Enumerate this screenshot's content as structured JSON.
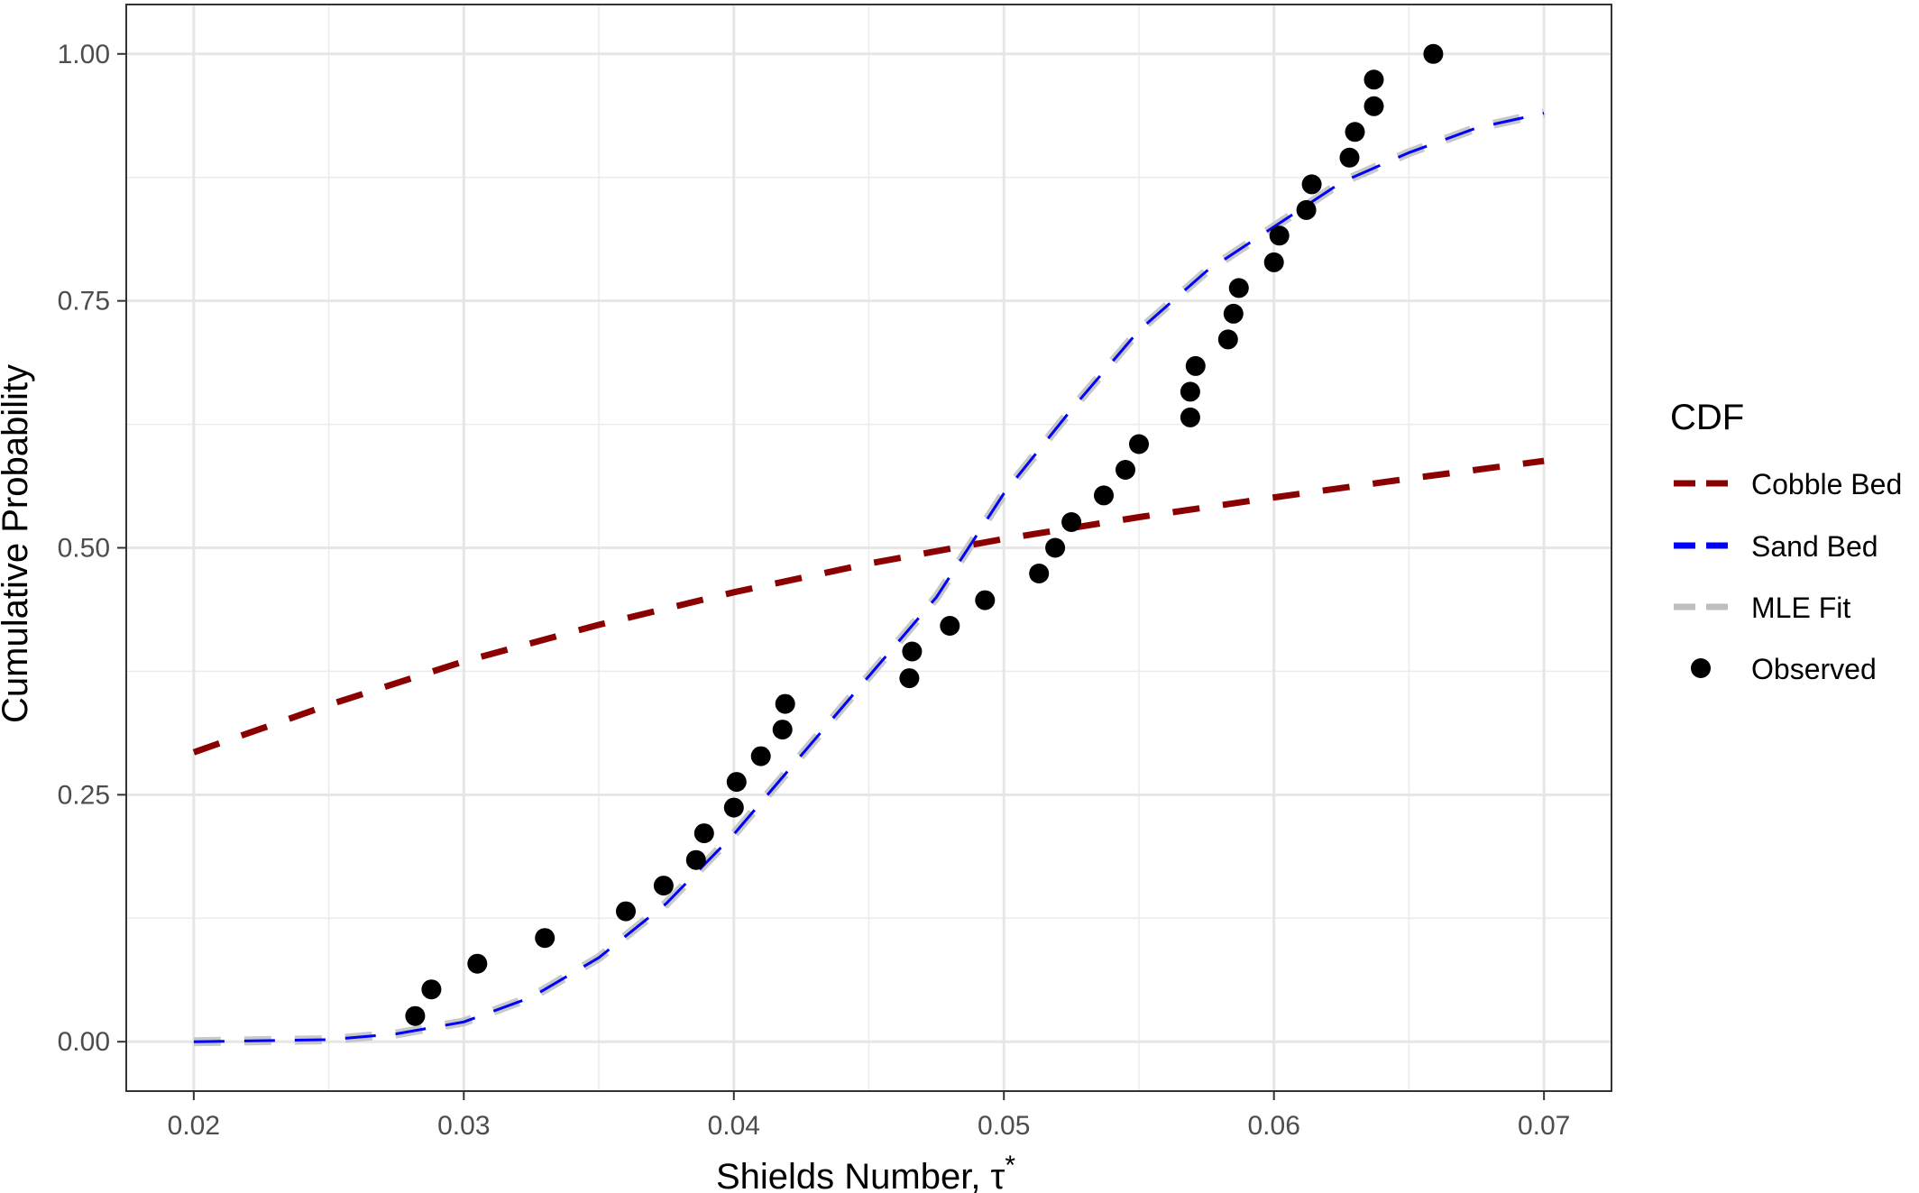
{
  "chart_data": {
    "type": "line",
    "xlabel": "Shields Number, τ",
    "xlabel_superscript": "*",
    "ylabel": "Cumulative Probability",
    "xlim": [
      0.0175,
      0.0725
    ],
    "ylim": [
      -0.05,
      1.05
    ],
    "x_ticks": [
      0.02,
      0.03,
      0.04,
      0.05,
      0.06,
      0.07
    ],
    "x_tick_labels": [
      "0.02",
      "0.03",
      "0.04",
      "0.05",
      "0.06",
      "0.07"
    ],
    "y_ticks": [
      0,
      0.25,
      0.5,
      0.75,
      1.0
    ],
    "y_tick_labels": [
      "0.00",
      "0.25",
      "0.50",
      "0.75",
      "1.00"
    ],
    "grid": true,
    "legend": {
      "title": "CDF",
      "placement": "right",
      "entries": [
        {
          "label": "Cobble Bed",
          "type": "dashed-line",
          "color": "#8b0000"
        },
        {
          "label": "Sand Bed",
          "type": "dashed-line",
          "color": "#0000ff"
        },
        {
          "label": "MLE Fit",
          "type": "dashed-line",
          "color": "#bebebe"
        },
        {
          "label": "Observed",
          "type": "point",
          "color": "#000000"
        }
      ]
    },
    "series": [
      {
        "name": "Cobble Bed",
        "type": "line",
        "style": "dashed",
        "color": "#8b0000",
        "x": [
          0.02,
          0.025,
          0.03,
          0.035,
          0.04,
          0.045,
          0.05,
          0.055,
          0.06,
          0.065,
          0.07
        ],
        "y": [
          0.293,
          0.341,
          0.385,
          0.422,
          0.455,
          0.484,
          0.509,
          0.531,
          0.551,
          0.57,
          0.588
        ]
      },
      {
        "name": "Sand Bed",
        "type": "line",
        "style": "dashed",
        "color": "#0000ff",
        "x": [
          0.02,
          0.025,
          0.0275,
          0.03,
          0.0325,
          0.035,
          0.0375,
          0.04,
          0.0425,
          0.045,
          0.0475,
          0.05,
          0.0525,
          0.055,
          0.0575,
          0.06,
          0.0625,
          0.065,
          0.0675,
          0.07
        ],
        "y": [
          0.0,
          0.002,
          0.008,
          0.02,
          0.045,
          0.085,
          0.14,
          0.21,
          0.29,
          0.37,
          0.45,
          0.555,
          0.64,
          0.72,
          0.78,
          0.825,
          0.87,
          0.9,
          0.925,
          0.94
        ]
      },
      {
        "name": "MLE Fit",
        "type": "line",
        "style": "dashed",
        "color": "#bebebe",
        "x": [
          0.02,
          0.025,
          0.0275,
          0.03,
          0.0325,
          0.035,
          0.0375,
          0.04,
          0.0425,
          0.045,
          0.0475,
          0.05,
          0.0525,
          0.055,
          0.0575,
          0.06,
          0.0625,
          0.065,
          0.0675,
          0.07
        ],
        "y": [
          0.0,
          0.002,
          0.008,
          0.02,
          0.045,
          0.085,
          0.14,
          0.21,
          0.29,
          0.37,
          0.45,
          0.555,
          0.64,
          0.72,
          0.78,
          0.825,
          0.87,
          0.9,
          0.925,
          0.94
        ]
      },
      {
        "name": "Observed",
        "type": "scatter",
        "color": "#000000",
        "x": [
          0.0282,
          0.0288,
          0.0305,
          0.033,
          0.036,
          0.0374,
          0.0386,
          0.0389,
          0.04,
          0.0401,
          0.041,
          0.0418,
          0.0419,
          0.0465,
          0.0466,
          0.048,
          0.0493,
          0.0513,
          0.0519,
          0.0525,
          0.0537,
          0.0545,
          0.055,
          0.0569,
          0.0569,
          0.0571,
          0.0583,
          0.0585,
          0.0587,
          0.06,
          0.0602,
          0.0612,
          0.0614,
          0.0628,
          0.063,
          0.0637,
          0.0637,
          0.0659
        ],
        "y": [
          0.026,
          0.053,
          0.079,
          0.105,
          0.132,
          0.158,
          0.184,
          0.211,
          0.237,
          0.263,
          0.289,
          0.316,
          0.342,
          0.368,
          0.395,
          0.421,
          0.447,
          0.474,
          0.5,
          0.526,
          0.553,
          0.579,
          0.605,
          0.632,
          0.658,
          0.684,
          0.711,
          0.737,
          0.763,
          0.789,
          0.816,
          0.842,
          0.868,
          0.895,
          0.921,
          0.947,
          0.974,
          1.0
        ]
      }
    ]
  }
}
